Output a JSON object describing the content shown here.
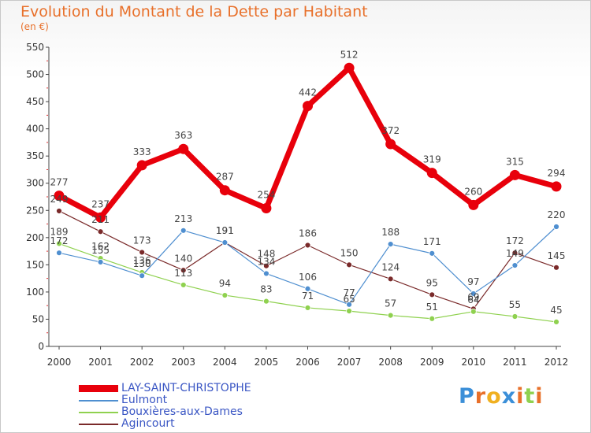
{
  "title": "Evolution du Montant de la Dette par Habitant",
  "subtitle": "(en €)",
  "chart_data": {
    "type": "line",
    "title": "Evolution du Montant de la Dette par Habitant",
    "ylabel": "(en €)",
    "xlabel": "",
    "categories": [
      "2000",
      "2001",
      "2002",
      "2003",
      "2004",
      "2005",
      "2006",
      "2007",
      "2008",
      "2009",
      "2010",
      "2011",
      "2012"
    ],
    "ylim": [
      0,
      550
    ],
    "yticks": [
      0,
      50,
      100,
      150,
      200,
      250,
      300,
      350,
      400,
      450,
      500,
      550
    ],
    "grid": false,
    "legend_position": "bottom-left",
    "series": [
      {
        "name": "LAY-SAINT-CHRISTOPHE",
        "color": "#e8000b",
        "values": [
          277,
          237,
          333,
          363,
          287,
          254,
          442,
          512,
          372,
          319,
          260,
          315,
          294
        ]
      },
      {
        "name": "Eulmont",
        "color": "#4f8fd0",
        "values": [
          172,
          155,
          130,
          213,
          191,
          134,
          106,
          77,
          188,
          171,
          97,
          149,
          220
        ]
      },
      {
        "name": "Bouxières-aux-Dames",
        "color": "#8fd14f",
        "values": [
          189,
          162,
          136,
          113,
          94,
          83,
          71,
          65,
          57,
          51,
          64,
          55,
          45
        ]
      },
      {
        "name": "Agincourt",
        "color": "#7a2a2a",
        "values": [
          249,
          211,
          173,
          140,
          191,
          148,
          186,
          150,
          124,
          95,
          69,
          172,
          145
        ]
      }
    ],
    "data_labels": {
      "LAY-SAINT-CHRISTOPHE": [
        "277",
        "237",
        "333",
        "363",
        "287",
        "254",
        "442",
        "512",
        "372",
        "319",
        "260",
        "315",
        "294"
      ],
      "Eulmont": [
        "172",
        "155",
        "130",
        "213",
        "191",
        "134",
        "106",
        "77",
        "188",
        "171",
        "97",
        "149",
        "220"
      ],
      "Bouxières-aux-Dames": [
        "189",
        "162",
        "136",
        "113",
        "94",
        "83",
        "71",
        "65",
        "57",
        "51",
        "64",
        "55",
        "45"
      ],
      "Agincourt": [
        "249",
        "211",
        "173",
        "140",
        "191",
        "148",
        "186",
        "150",
        "124",
        "95",
        "69",
        "172",
        "145"
      ]
    }
  },
  "logo": {
    "text": "Proxiti",
    "letters": [
      {
        "ch": "P",
        "color": "#3b8fd8"
      },
      {
        "ch": "r",
        "color": "#e8702a"
      },
      {
        "ch": "o",
        "color": "#f0b020"
      },
      {
        "ch": "x",
        "color": "#3b8fd8"
      },
      {
        "ch": "i",
        "color": "#e8702a"
      },
      {
        "ch": "t",
        "color": "#8fd14f"
      },
      {
        "ch": "i",
        "color": "#e8702a"
      }
    ]
  }
}
